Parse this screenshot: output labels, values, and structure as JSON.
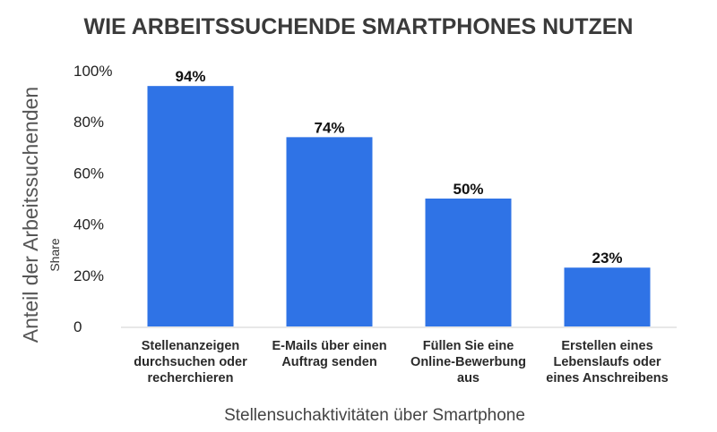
{
  "chart_data": {
    "type": "bar",
    "title": "WIE ARBEITSSUCHENDE SMARTPHONES NUTZEN",
    "xlabel": "Stellensuchaktivitäten über Smartphone",
    "ylabel": "Anteil der Arbeitssuchenden",
    "ylabel_secondary": "Share",
    "categories": [
      [
        "Stellenanzeigen",
        "durchsuchen oder",
        "recherchieren"
      ],
      [
        "E-Mails über einen",
        "Auftrag senden"
      ],
      [
        "Füllen Sie eine",
        "Online-Bewerbung",
        "aus"
      ],
      [
        "Erstellen eines",
        "Lebenslaufs oder",
        "eines Anschreibens"
      ]
    ],
    "values": [
      94,
      74,
      50,
      23
    ],
    "value_labels": [
      "94%",
      "74%",
      "50%",
      "23%"
    ],
    "ylim": [
      0,
      100
    ],
    "yticks": [
      0,
      20,
      40,
      60,
      80,
      100
    ],
    "ytick_labels": [
      "0",
      "20%",
      "40%",
      "60%",
      "80%",
      "100%"
    ],
    "bar_color": "#2f73e6",
    "grid": false,
    "legend": "none"
  }
}
